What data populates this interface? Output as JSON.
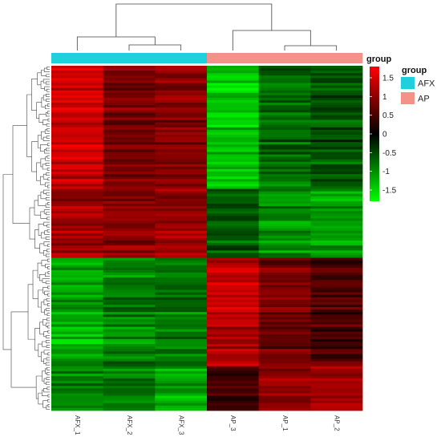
{
  "chart_data": {
    "type": "heatmap",
    "columns": [
      "AFX_1",
      "AFX_2",
      "AFX_3",
      "AP_3",
      "AP_1",
      "AP_2"
    ],
    "column_groups": [
      "AFX",
      "AFX",
      "AFX",
      "AP",
      "AP",
      "AP"
    ],
    "annotation_title": "group",
    "legend_title": "group",
    "groups": [
      {
        "name": "AFX",
        "color": "#1fcfdc"
      },
      {
        "name": "AP",
        "color": "#f4928a"
      }
    ],
    "colorbar": {
      "ticks": [
        "1.5",
        "1",
        "0.5",
        "0",
        "-0.5",
        "-1",
        "-1.5"
      ],
      "tick_values": [
        1.5,
        1,
        0.5,
        0,
        -0.5,
        -1,
        -1.5
      ],
      "range": [
        -1.8,
        1.8
      ],
      "colors": {
        "low": "#00ff00",
        "mid": "#000000",
        "high": "#ff0000"
      }
    },
    "row_clusters": [
      {
        "rows": 50,
        "mean": [
          1.45,
          0.85,
          0.95,
          -1.4,
          -0.75,
          -0.6
        ]
      },
      {
        "rows": 28,
        "mean": [
          1.15,
          1.05,
          1.1,
          -0.55,
          -1.0,
          -1.1
        ]
      },
      {
        "rows": 44,
        "mean": [
          -1.2,
          -0.9,
          -0.8,
          1.3,
          0.8,
          0.55
        ]
      },
      {
        "rows": 18,
        "mean": [
          -0.9,
          -0.95,
          -1.15,
          0.45,
          1.0,
          1.1
        ]
      }
    ],
    "column_dendrogram": [
      [
        1,
        2
      ],
      [
        0,
        "AB"
      ],
      [
        4,
        5
      ],
      [
        3,
        "DE"
      ],
      [
        "ABC",
        "DEF"
      ]
    ],
    "grid": false,
    "legend_position": "right"
  }
}
